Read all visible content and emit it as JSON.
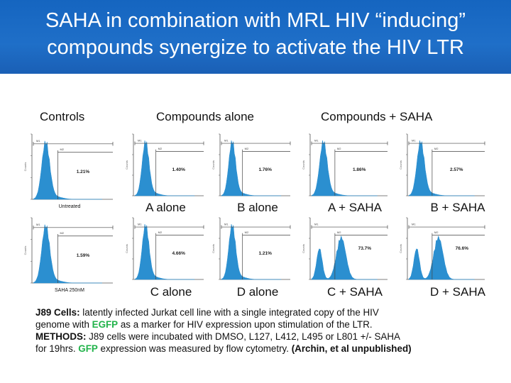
{
  "title": {
    "line1": "SAHA in combination with MRL HIV “inducing”",
    "line2": "compounds synergize to activate the HIV LTR"
  },
  "sections": {
    "controls": "Controls",
    "compounds_alone": "Compounds alone",
    "compounds_saha": "Compounds + SAHA"
  },
  "panels": [
    {
      "id": "untreated",
      "pct": "1.21%",
      "caption": "Untreated",
      "tick_high": "M1",
      "tick_low": "M2",
      "shape": "mono"
    },
    {
      "id": "a",
      "pct": "1.40%",
      "label": "A  alone",
      "tick_high": "M1",
      "tick_low": "M2",
      "shape": "mono"
    },
    {
      "id": "b",
      "pct": "1.76%",
      "label": "B alone",
      "tick_high": "M1",
      "tick_low": "M2",
      "shape": "mono"
    },
    {
      "id": "a_saha",
      "pct": "1.86%",
      "label": "A + SAHA",
      "tick_high": "M1",
      "tick_low": "M2",
      "shape": "mono"
    },
    {
      "id": "b_saha",
      "pct": "2.57%",
      "label": "B + SAHA",
      "tick_high": "M1",
      "tick_low": "M2",
      "shape": "mono"
    },
    {
      "id": "saha",
      "pct": "1.59%",
      "caption": "SAHA  250nM",
      "tick_high": "M1",
      "tick_low": "M2",
      "shape": "mono"
    },
    {
      "id": "c",
      "pct": "4.66%",
      "label": "C alone",
      "tick_high": "M1",
      "tick_low": "M2",
      "shape": "mono"
    },
    {
      "id": "d",
      "pct": "1.21%",
      "label": "D alone",
      "tick_high": "M1",
      "tick_low": "M2",
      "shape": "mono"
    },
    {
      "id": "c_saha",
      "pct": "73.7%",
      "label": "C + SAHA",
      "tick_high": "M1",
      "tick_low": "M2",
      "shape": "bi"
    },
    {
      "id": "d_saha",
      "pct": "76.6%",
      "label": "D + SAHA",
      "tick_high": "M1",
      "tick_low": "M2",
      "shape": "bi"
    }
  ],
  "caption": {
    "l1_bold": "J89 Cells:",
    "l1_rest": " latently infected Jurkat cell line with a single integrated copy of  the HIV",
    "l2_a": "genome with ",
    "l2_green": "EGFP",
    "l2_b": " as a marker for HIV expression upon stimulation of the LTR.",
    "l3_bold": "METHODS:",
    "l3_rest": "  J89 cells were incubated with DMSO, L127, L412, L495 or L801 +/- SAHA",
    "l4_a": "for 19hrs. ",
    "l4_green": "GFP",
    "l4_b": " expression was measured by flow cytometry.  ",
    "l4_bold": "(Archin, et al unpublished)"
  },
  "colors": {
    "title_bg": "#1a66c2",
    "histogram": "#2b8fd0",
    "green": "#21b34a"
  }
}
